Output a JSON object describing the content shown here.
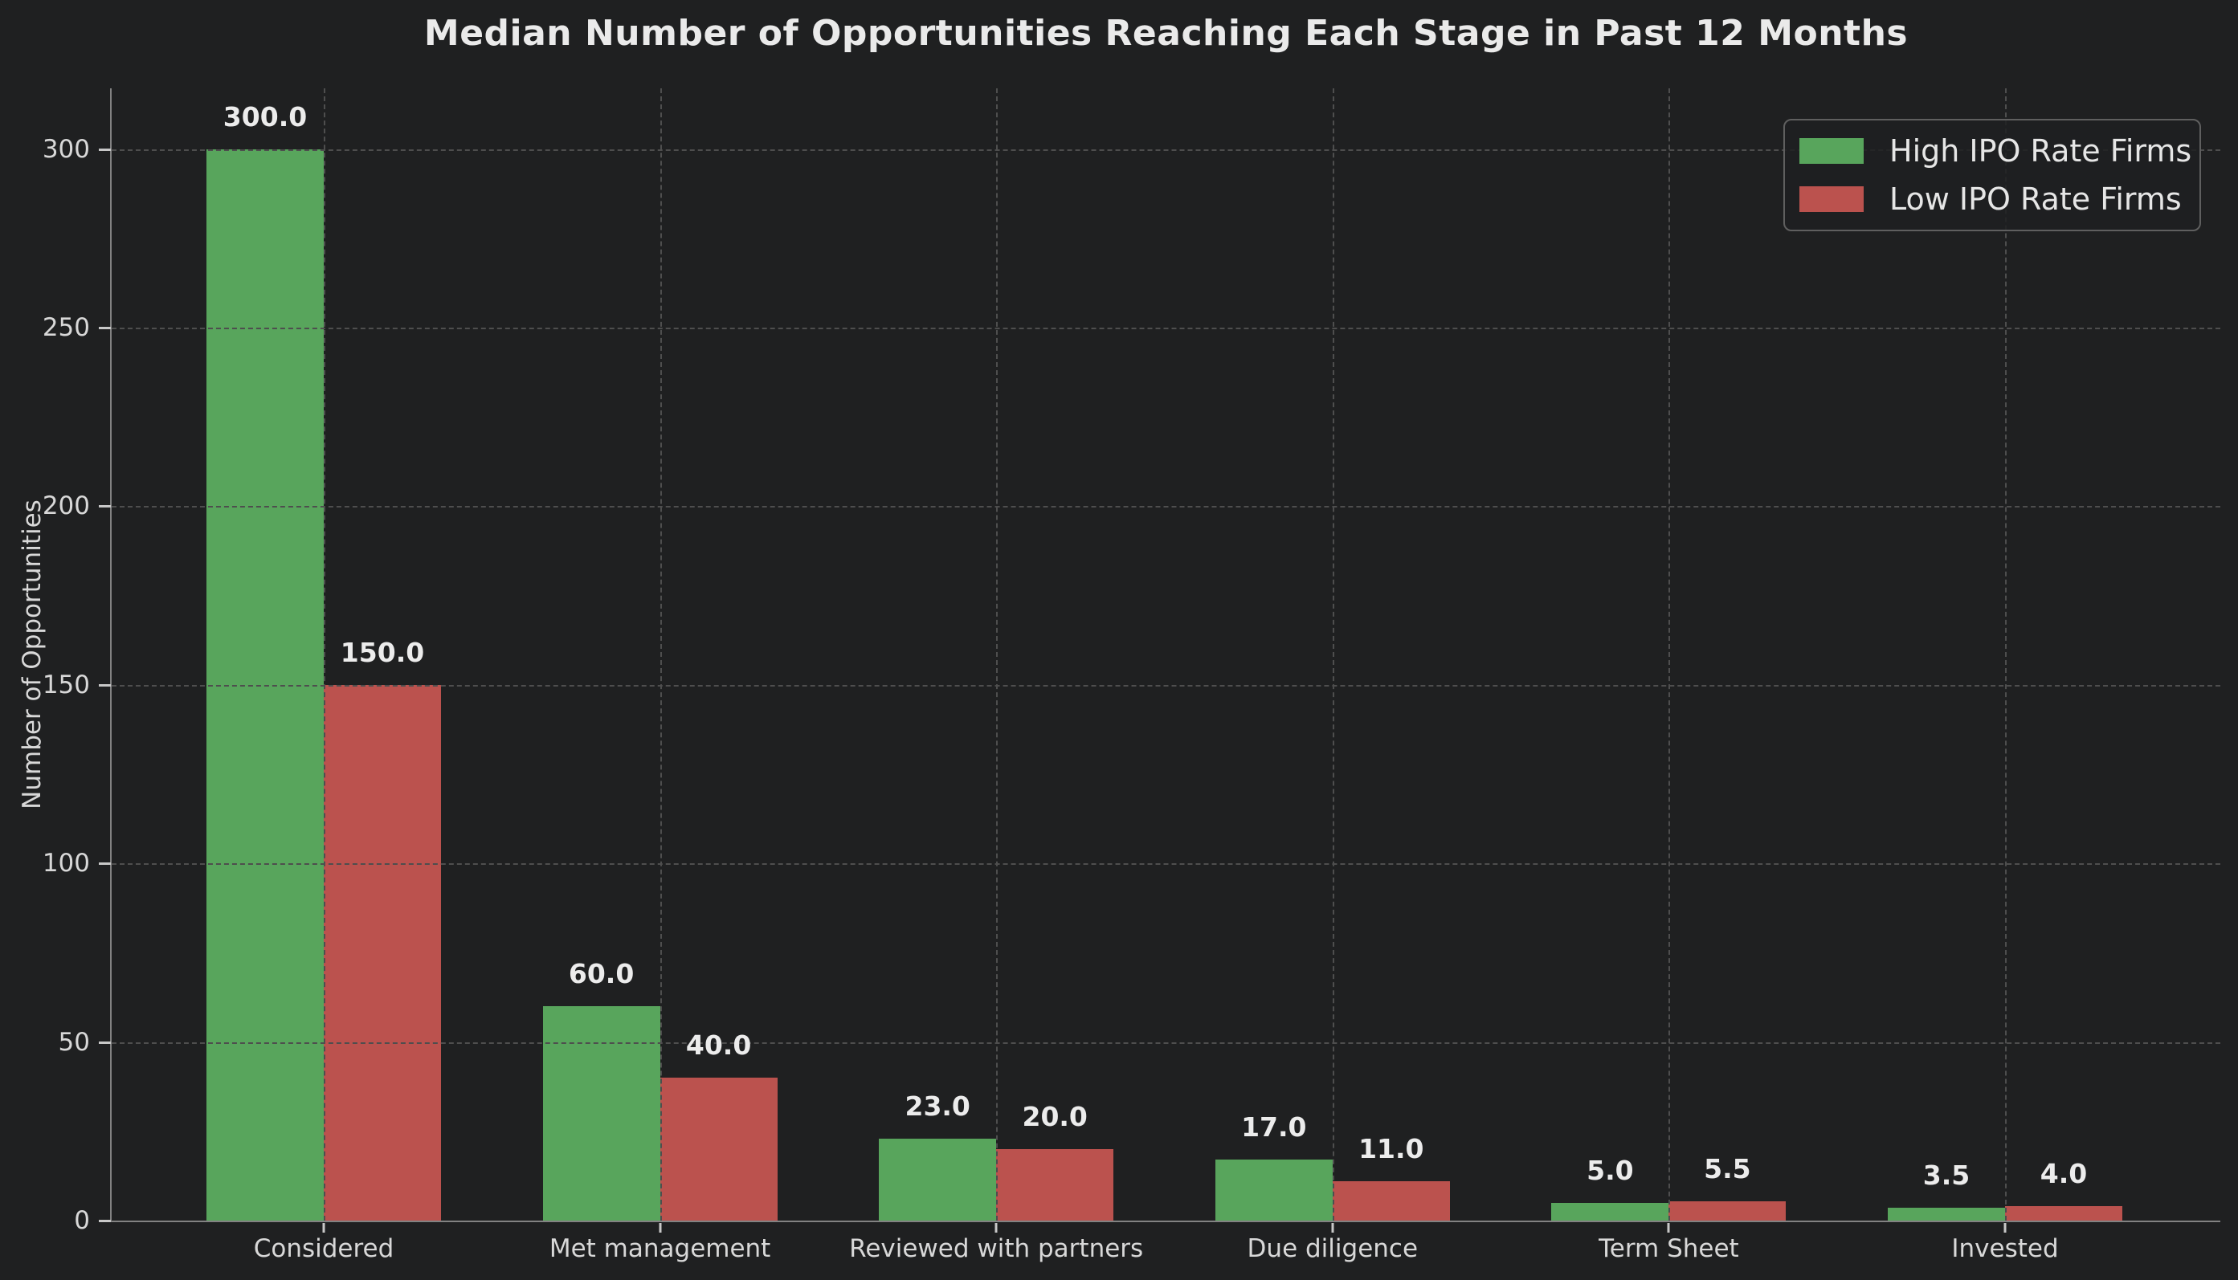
{
  "chart_data": {
    "type": "bar",
    "title": "Median Number of Opportunities Reaching Each Stage in Past 12 Months",
    "xlabel": "",
    "ylabel": "Number of Opportunities",
    "categories": [
      "Considered",
      "Met management",
      "Reviewed with partners",
      "Due diligence",
      "Term Sheet",
      "Invested"
    ],
    "series": [
      {
        "name": "High IPO Rate Firms",
        "color": "#58a55c",
        "values": [
          300.0,
          60.0,
          23.0,
          17.0,
          5.0,
          3.5
        ]
      },
      {
        "name": "Low IPO Rate Firms",
        "color": "#bb524e",
        "values": [
          150.0,
          40.0,
          20.0,
          11.0,
          5.5,
          4.0
        ]
      }
    ],
    "bar_value_labels": [
      [
        "300.0",
        "60.0",
        "23.0",
        "17.0",
        "5.0",
        "3.5"
      ],
      [
        "150.0",
        "40.0",
        "20.0",
        "11.0",
        "5.5",
        "4.0"
      ]
    ],
    "yticks": [
      0,
      50,
      100,
      150,
      200,
      250,
      300
    ],
    "ylim": [
      0,
      317
    ],
    "grid": "dashed horizontal and vertical",
    "legend_position": "upper right"
  },
  "colors": {
    "background": "#1f2021",
    "grid": "#4e4e4e",
    "axis_spine": "#828282",
    "tick_mark": "#c8c8c8",
    "tick_label": "#d8d8d8",
    "title_text": "#eaeaea",
    "value_label": "#ececec",
    "legend_border": "#5f5f5f",
    "high_ipo_green": "#58a55c",
    "low_ipo_red": "#bb524e"
  }
}
